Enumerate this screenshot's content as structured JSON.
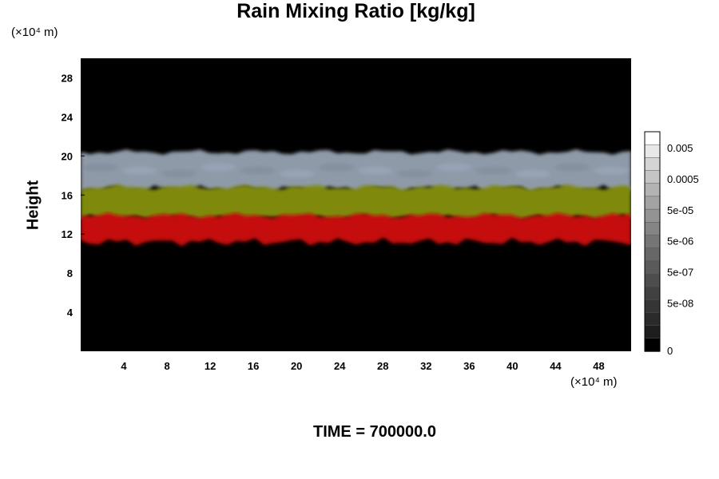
{
  "chart_data": {
    "type": "heatmap",
    "title": "Rain Mixing Ratio [kg/kg]",
    "ylabel": "Height",
    "xlabel": "",
    "x_unit": "(×10⁴ m)",
    "y_unit": "(×10⁴ m)",
    "xlim": [
      0,
      51
    ],
    "ylim": [
      0,
      30
    ],
    "x_ticks": [
      4,
      8,
      12,
      16,
      20,
      24,
      28,
      32,
      36,
      40,
      44,
      48
    ],
    "y_ticks": [
      4,
      8,
      12,
      16,
      20,
      24,
      28
    ],
    "layers": [
      {
        "label": "gray",
        "y_bottom": 16.6,
        "y_top": 20.4,
        "color": "#8e9aa8"
      },
      {
        "label": "yellow",
        "y_bottom": 13.6,
        "y_top": 16.8,
        "color": "#7f8a10"
      },
      {
        "label": "red",
        "y_bottom": 11.2,
        "y_top": 13.9,
        "color": "#c50f0f"
      }
    ],
    "colorbar": {
      "tick_labels": [
        "0.005",
        "0.0005",
        "5e-05",
        "5e-06",
        "5e-07",
        "5e-08",
        "0"
      ],
      "colors": [
        "#ffffff",
        "#e8e8e8",
        "#d4d4d4",
        "#c4c4c4",
        "#b3b3b3",
        "#a3a3a3",
        "#939393",
        "#848484",
        "#757575",
        "#676767",
        "#5a5a5a",
        "#4d4d4d",
        "#414141",
        "#353535",
        "#2a2a2a",
        "#1e1e1e",
        "#000000"
      ]
    },
    "grid": false
  },
  "footer": {
    "time_label": "TIME = 700000.0"
  }
}
